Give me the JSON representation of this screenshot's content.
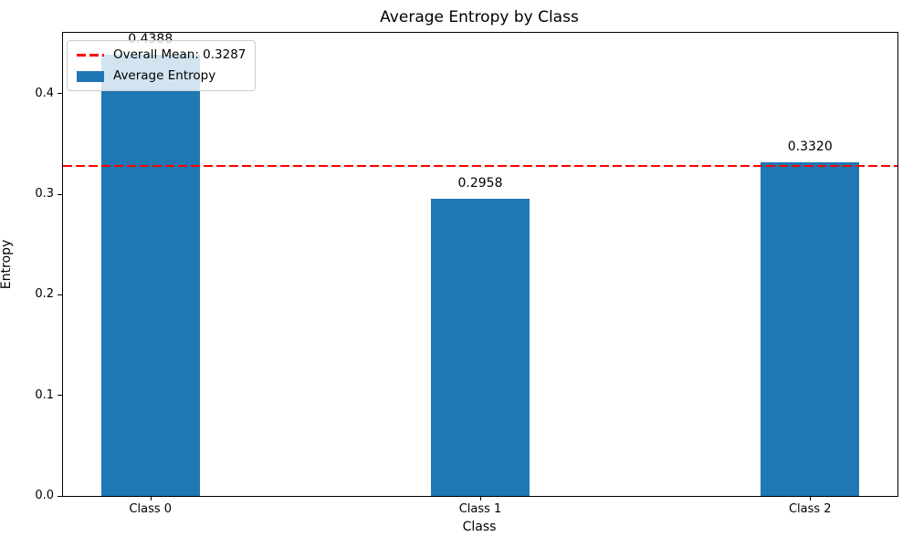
{
  "chart_data": {
    "type": "bar",
    "title": "Average Entropy by Class",
    "xlabel": "Class",
    "ylabel": "Entropy",
    "categories": [
      "Class 0",
      "Class 1",
      "Class 2"
    ],
    "values": [
      0.4388,
      0.2958,
      0.332
    ],
    "bar_labels": [
      "0.4388",
      "0.2958",
      "0.3320"
    ],
    "bar_color": "#1f77b4",
    "bar_width": 0.3,
    "xlim": [
      -0.265,
      2.265
    ],
    "ylim": [
      0,
      0.4607
    ],
    "yticks": [
      0.0,
      0.1,
      0.2,
      0.3,
      0.4
    ],
    "ytick_labels": [
      "0.0",
      "0.1",
      "0.2",
      "0.3",
      "0.4"
    ],
    "grid": false,
    "mean_line": {
      "value": 0.3287,
      "color": "#ff0000",
      "style": "dashed"
    },
    "legend": {
      "position": "upper-left",
      "entries": [
        {
          "label": "Overall Mean: 0.3287",
          "type": "dashed-line",
          "color": "#ff0000"
        },
        {
          "label": "Average Entropy",
          "type": "patch",
          "color": "#1f77b4"
        }
      ]
    }
  }
}
